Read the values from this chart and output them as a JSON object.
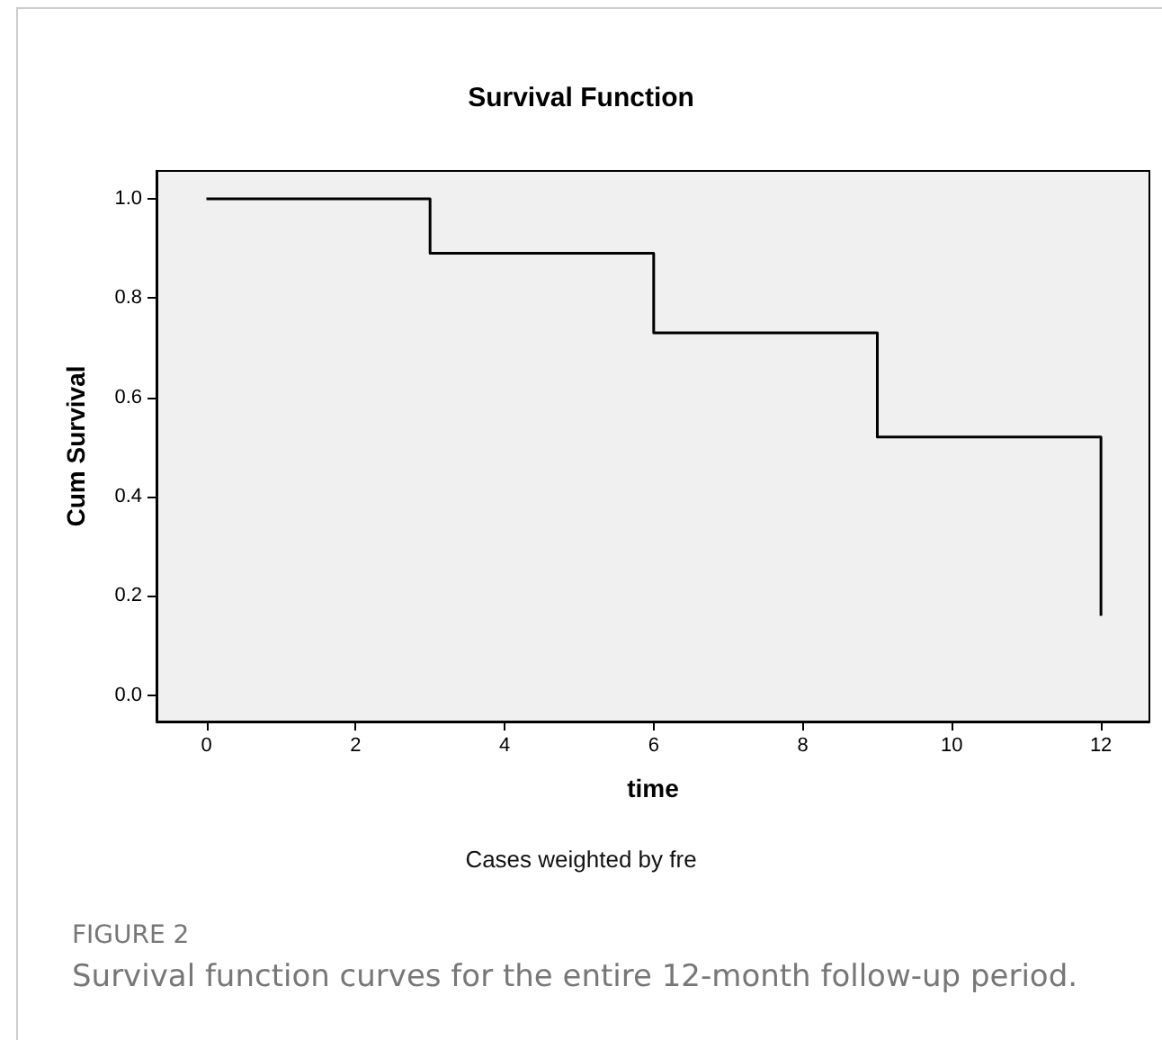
{
  "chart_data": {
    "type": "step",
    "title": "Survival Function",
    "xlabel": "time",
    "ylabel": "Cum Survival",
    "annotations": [
      "Cases weighted by fre",
      "FIGURE 2",
      "Survival function curves for the entire 12-month follow-up period."
    ],
    "x": [
      0,
      3,
      6,
      9,
      12
    ],
    "series": [
      {
        "color": "#000000",
        "values": [
          1,
          0.89,
          0.73,
          0.52,
          0.16
        ]
      }
    ],
    "xlim": [
      -0.67,
      12.65
    ],
    "xticks": [
      0,
      2,
      4,
      6,
      8,
      10,
      12
    ],
    "ylim": [
      -0.053,
      1.056
    ],
    "yticks": [
      {
        "value": 0,
        "label": "0.0"
      },
      {
        "value": 0.2,
        "label": "0.2"
      },
      {
        "value": 0.4,
        "label": "0.4"
      },
      {
        "value": 0.6,
        "label": "0.6"
      },
      {
        "value": 0.8,
        "label": "0.8"
      },
      {
        "value": 1,
        "label": "1.0"
      }
    ],
    "grid": false,
    "marker": "none",
    "line_style": "solid"
  }
}
